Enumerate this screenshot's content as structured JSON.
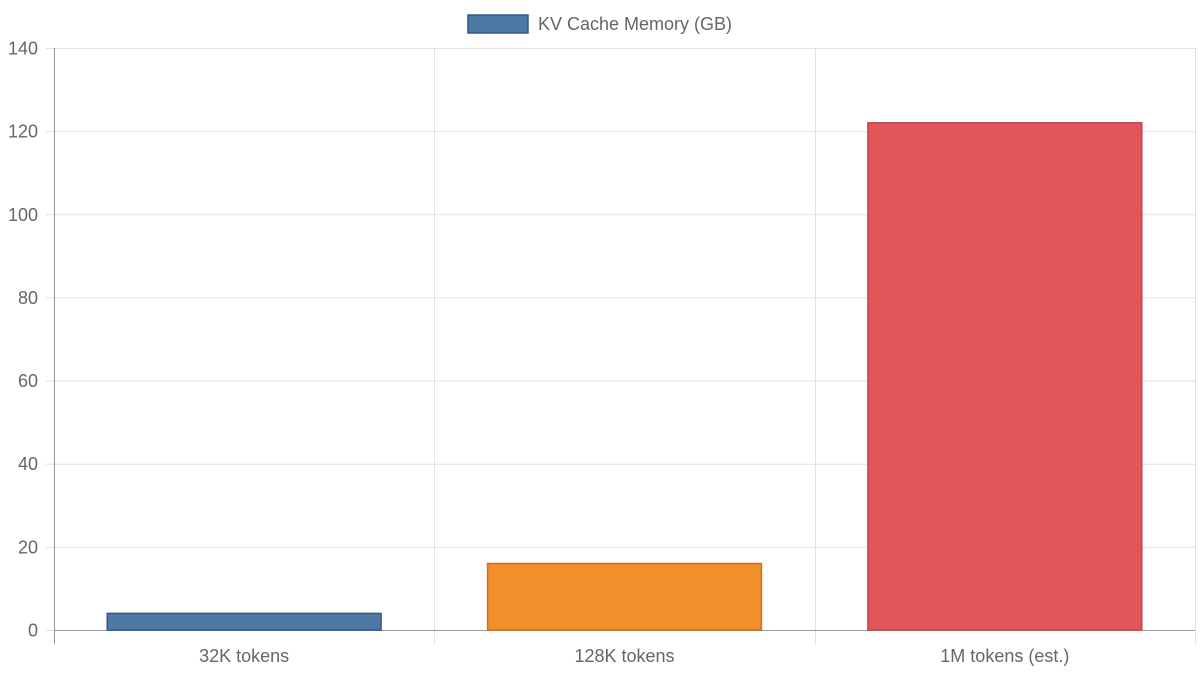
{
  "chart_data": {
    "type": "bar",
    "categories": [
      "32K tokens",
      "128K tokens",
      "1M tokens (est.)"
    ],
    "series": [
      {
        "name": "KV Cache Memory (GB)",
        "values": [
          4,
          16,
          122
        ]
      }
    ],
    "bar_colors": [
      "#4e79a7",
      "#f28e2b",
      "#e15759"
    ],
    "bar_border_colors": [
      "#2f5a87",
      "#c9731d",
      "#c7424a"
    ],
    "legend_color": "#4e79a7",
    "ylim": [
      0,
      140
    ],
    "y_ticks": [
      0,
      20,
      40,
      60,
      80,
      100,
      120,
      140
    ],
    "y_tick_labels": [
      "0",
      "20",
      "40",
      "60",
      "80",
      "100",
      "120",
      "140"
    ],
    "grid": true,
    "legend_position": "top-center",
    "title": "",
    "xlabel": "",
    "ylabel": ""
  }
}
